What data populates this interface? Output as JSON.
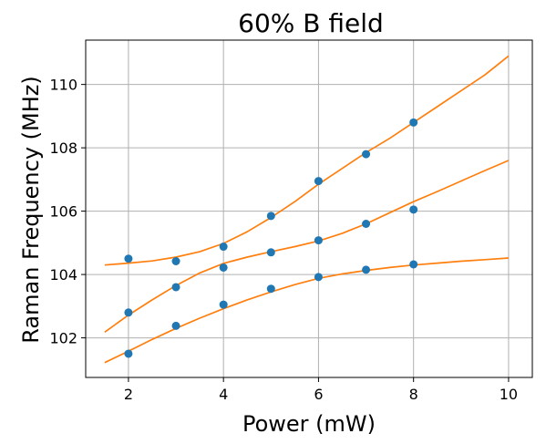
{
  "chart_data": {
    "type": "scatter",
    "title": "60% B field",
    "xlabel": "Power (mW)",
    "ylabel": "Raman Frequency (MHz)",
    "xlim": [
      1.1,
      10.5
    ],
    "ylim": [
      100.75,
      111.4
    ],
    "xticks": [
      2,
      4,
      6,
      8,
      10
    ],
    "yticks": [
      102,
      104,
      106,
      108,
      110
    ],
    "grid": true,
    "colors": {
      "points": "#1f77b4",
      "fit": "#ff7f0e",
      "grid": "#b0b0b0"
    },
    "points": {
      "x": [
        2,
        2,
        2,
        3,
        3,
        3,
        4,
        4,
        4,
        5,
        5,
        5,
        6,
        6,
        6,
        7,
        7,
        7,
        8,
        8,
        8
      ],
      "y": [
        104.5,
        102.8,
        101.5,
        104.42,
        103.6,
        102.38,
        104.88,
        104.22,
        103.05,
        105.85,
        104.7,
        103.55,
        106.95,
        105.08,
        103.92,
        107.8,
        105.6,
        104.15,
        108.8,
        106.05,
        104.32
      ]
    },
    "fit_curves": [
      {
        "x": [
          1.5,
          2,
          2.5,
          3,
          3.5,
          4,
          4.5,
          5,
          5.5,
          6,
          6.5,
          7,
          7.5,
          8,
          8.5,
          9,
          9.5,
          10
        ],
        "y": [
          104.3,
          104.36,
          104.43,
          104.55,
          104.72,
          104.98,
          105.35,
          105.8,
          106.3,
          106.85,
          107.35,
          107.85,
          108.3,
          108.8,
          109.3,
          109.8,
          110.3,
          110.9
        ]
      },
      {
        "x": [
          1.5,
          2,
          2.5,
          3,
          3.5,
          4,
          4.5,
          5,
          5.5,
          6,
          6.5,
          7,
          7.5,
          8,
          8.5,
          9,
          9.5,
          10
        ],
        "y": [
          102.18,
          102.72,
          103.2,
          103.65,
          104.05,
          104.35,
          104.55,
          104.72,
          104.88,
          105.06,
          105.3,
          105.6,
          105.95,
          106.3,
          106.62,
          106.95,
          107.28,
          107.6
        ]
      },
      {
        "x": [
          1.5,
          2,
          2.5,
          3,
          3.5,
          4,
          4.5,
          5,
          5.5,
          6,
          6.5,
          7,
          7.5,
          8,
          8.5,
          9,
          9.5,
          10
        ],
        "y": [
          101.22,
          101.58,
          101.95,
          102.3,
          102.62,
          102.92,
          103.2,
          103.45,
          103.68,
          103.88,
          104.02,
          104.13,
          104.22,
          104.3,
          104.36,
          104.42,
          104.47,
          104.52
        ]
      }
    ]
  }
}
